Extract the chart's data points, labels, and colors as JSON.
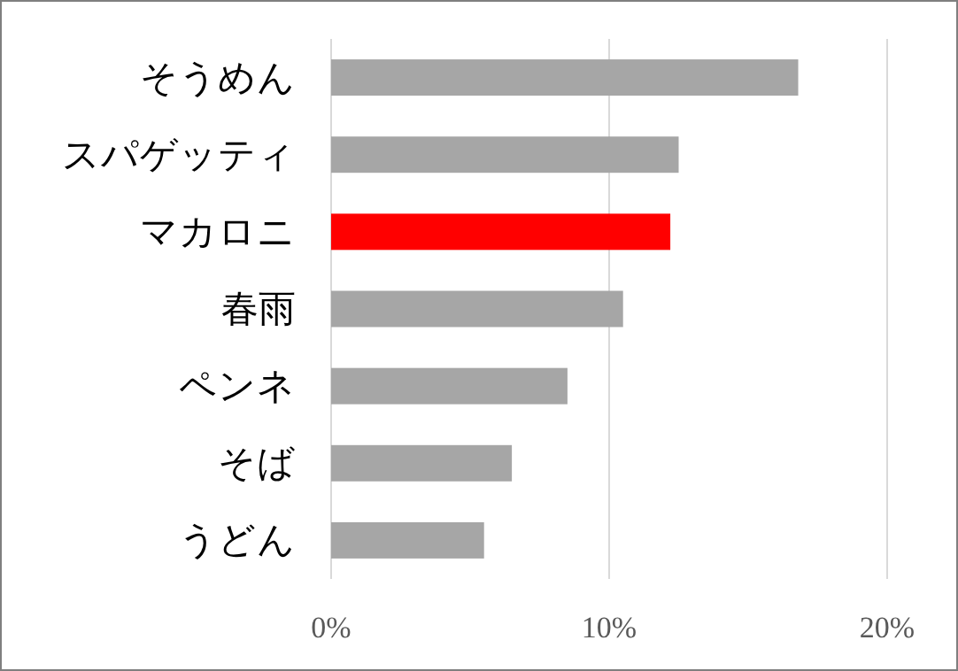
{
  "chart_data": {
    "type": "bar",
    "orientation": "horizontal",
    "categories": [
      "そうめん",
      "スパゲッティ",
      "マカロニ",
      "春雨",
      "ペンネ",
      "そば",
      "うどん"
    ],
    "values": [
      16.8,
      12.5,
      12.2,
      10.5,
      8.5,
      6.5,
      5.5
    ],
    "colors": [
      "#a6a6a6",
      "#a6a6a6",
      "#ff0000",
      "#a6a6a6",
      "#a6a6a6",
      "#a6a6a6",
      "#a6a6a6"
    ],
    "xlim": [
      0,
      20
    ],
    "xticks": [
      {
        "value": 0,
        "label": "0%"
      },
      {
        "value": 10,
        "label": "10%"
      },
      {
        "value": 20,
        "label": "20%"
      }
    ],
    "grid": "x"
  }
}
